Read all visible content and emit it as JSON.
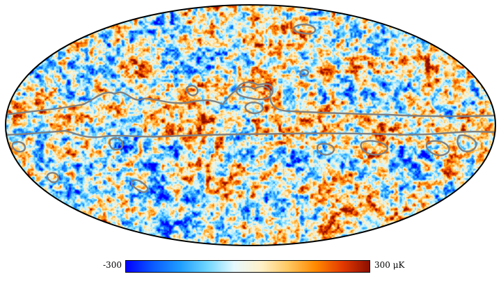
{
  "map": {
    "projection": "mollweide",
    "outline_color": "#000000",
    "mask_contour_color": "#808080",
    "palette": [
      "#0000ff",
      "#0a5bff",
      "#1f9dff",
      "#6fd6ff",
      "#cdf3ff",
      "#fff6d6",
      "#ffc860",
      "#ff8a00",
      "#e43a00",
      "#8b0f00"
    ]
  },
  "colorbar": {
    "min_label": "-300",
    "max_label": "300 μK",
    "stops": [
      "#0000ff",
      "#0a5bff",
      "#1f9dff",
      "#6fd6ff",
      "#e6f9ff",
      "#fff1c8",
      "#ffc860",
      "#ff8a00",
      "#e43a00",
      "#8b0f00"
    ]
  }
}
